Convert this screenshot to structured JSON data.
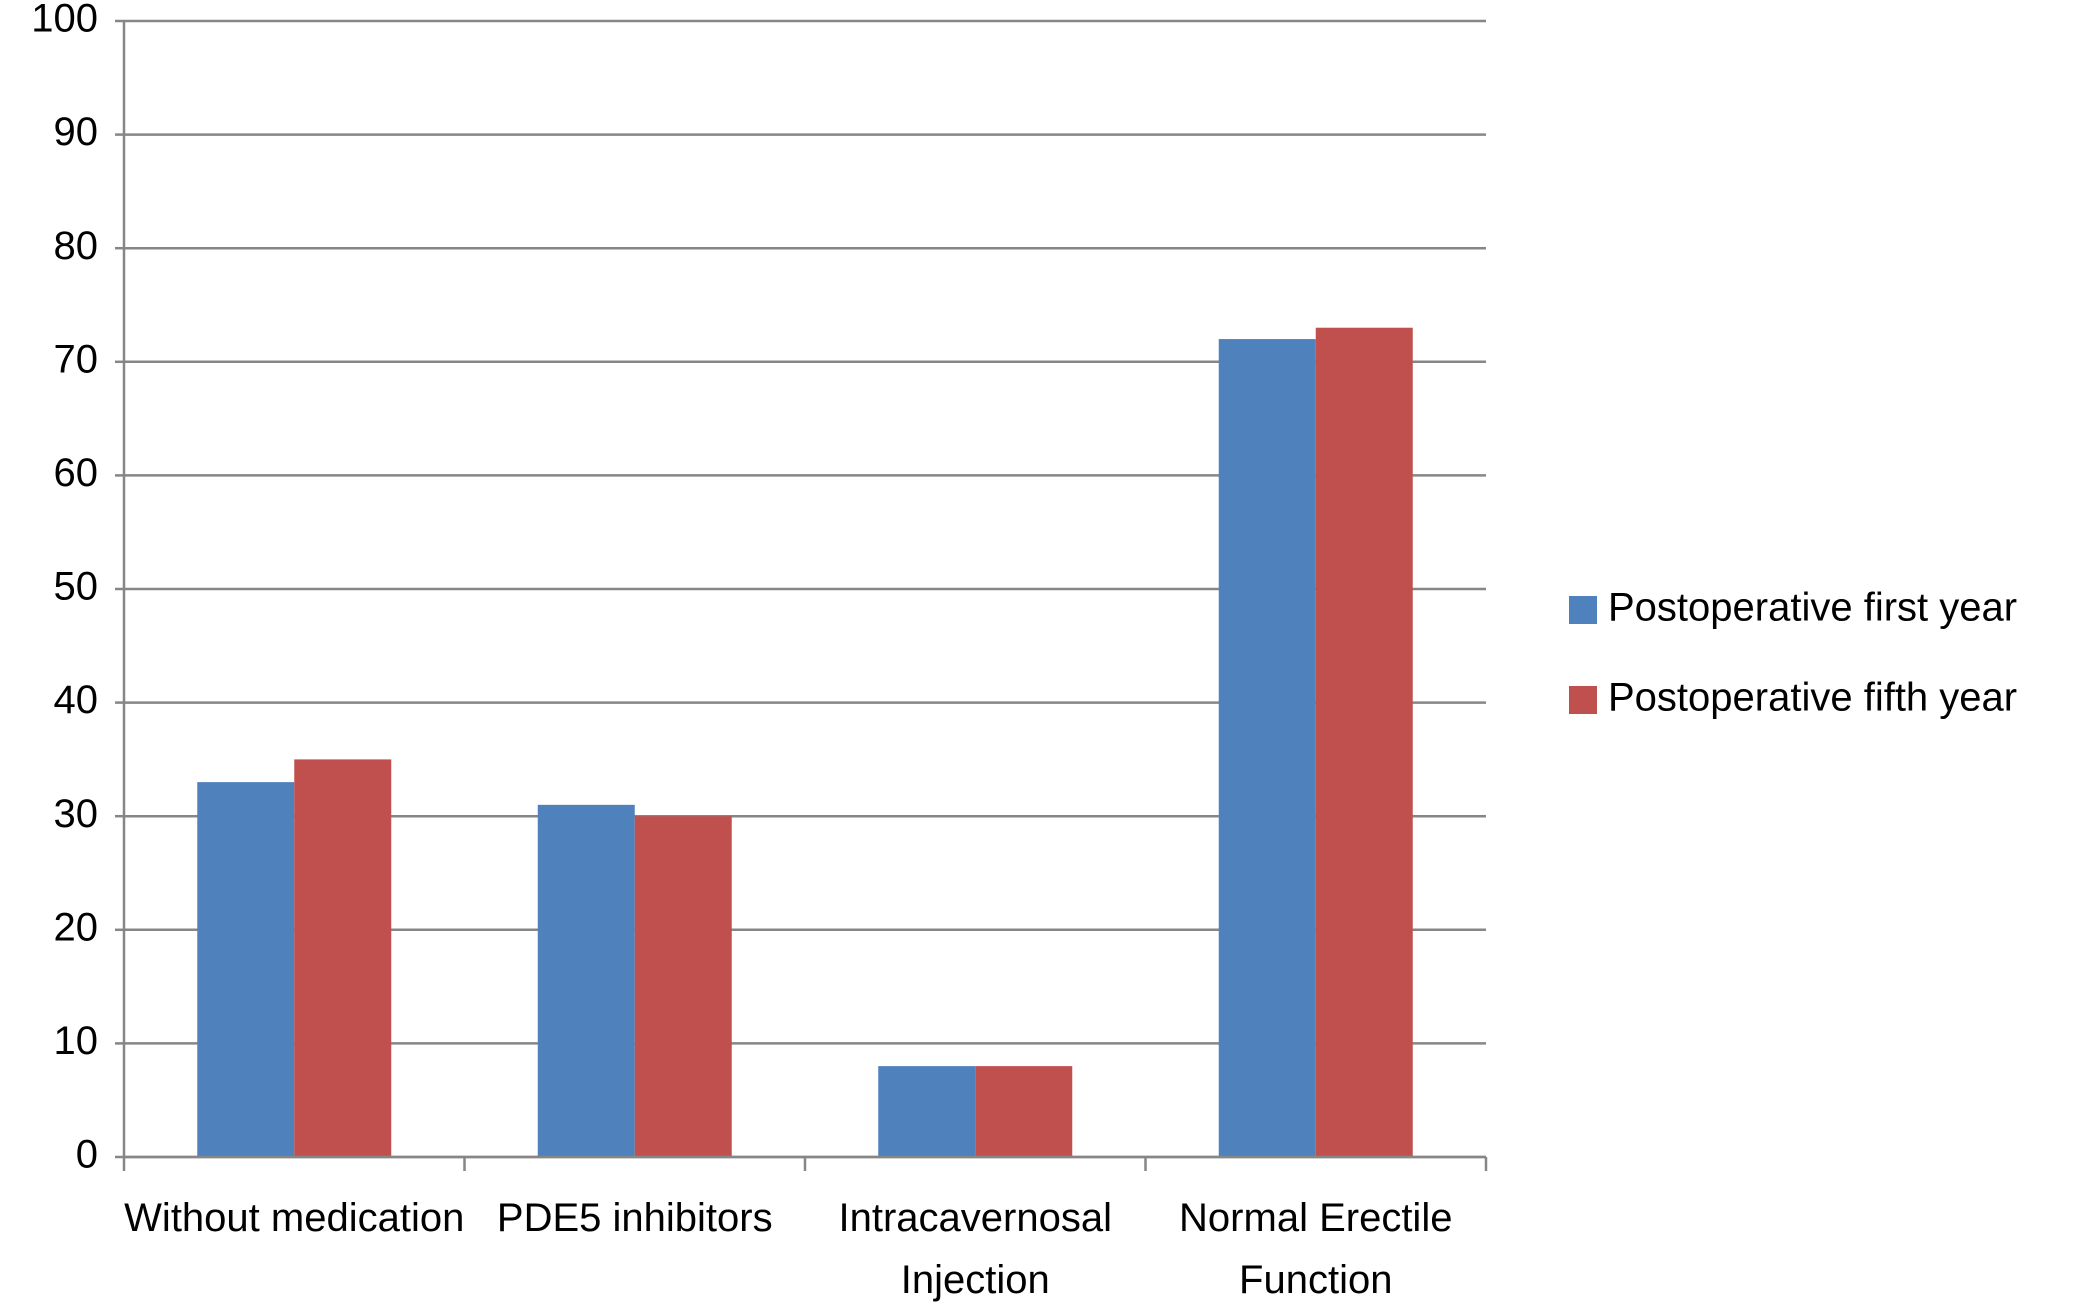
{
  "chart_data": {
    "type": "bar",
    "categories": [
      "Without medication",
      "PDE5 inhibitors",
      "Intracavernosal Injection",
      "Normal Erectile Function"
    ],
    "series": [
      {
        "name": "Postoperative first year",
        "color": "#4f81bd",
        "values": [
          33,
          31,
          8,
          72
        ]
      },
      {
        "name": "Postoperative fifth year",
        "color": "#c0504d",
        "values": [
          35,
          30,
          8,
          73
        ]
      }
    ],
    "ylim": [
      0,
      100
    ],
    "yticks": [
      0,
      10,
      20,
      30,
      40,
      50,
      60,
      70,
      80,
      90,
      100
    ],
    "grid": true,
    "legend": "right"
  }
}
